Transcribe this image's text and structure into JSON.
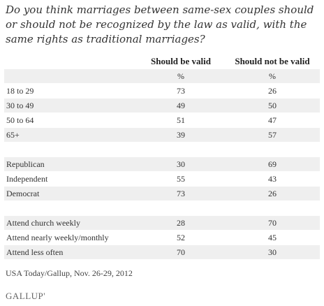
{
  "question": "Do you think marriages between same-sex couples should or should not be recognized by the law as valid, with the same rights as traditional marriages?",
  "chart_data": {
    "type": "table",
    "columns": [
      "Should be valid",
      "Should not be valid"
    ],
    "units": [
      "%",
      "%"
    ],
    "groups": [
      {
        "rows": [
          {
            "label": "18 to 29",
            "values": [
              73,
              26
            ]
          },
          {
            "label": "30 to 49",
            "values": [
              49,
              50
            ]
          },
          {
            "label": "50 to 64",
            "values": [
              51,
              47
            ]
          },
          {
            "label": "65+",
            "values": [
              39,
              57
            ]
          }
        ]
      },
      {
        "rows": [
          {
            "label": "Republican",
            "values": [
              30,
              69
            ]
          },
          {
            "label": "Independent",
            "values": [
              55,
              43
            ]
          },
          {
            "label": "Democrat",
            "values": [
              73,
              26
            ]
          }
        ]
      },
      {
        "rows": [
          {
            "label": "Attend church weekly",
            "values": [
              28,
              70
            ]
          },
          {
            "label": "Attend nearly weekly/monthly",
            "values": [
              52,
              45
            ]
          },
          {
            "label": "Attend less often",
            "values": [
              70,
              30
            ]
          }
        ]
      }
    ]
  },
  "source": "USA Today/Gallup, Nov. 26-29, 2012",
  "logo_text": "GALLUP'",
  "colors": {
    "shade": "#efefef",
    "text": "#333333"
  }
}
